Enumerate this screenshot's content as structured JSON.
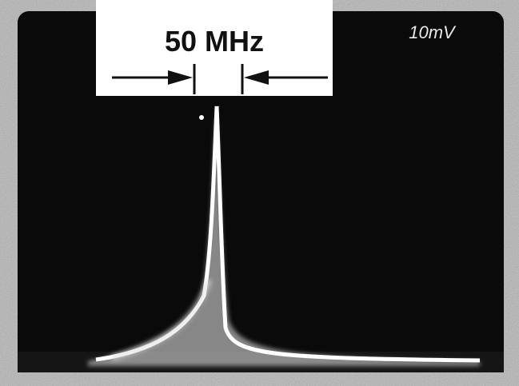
{
  "label": "50 MHz",
  "scale": "10mV"
}
